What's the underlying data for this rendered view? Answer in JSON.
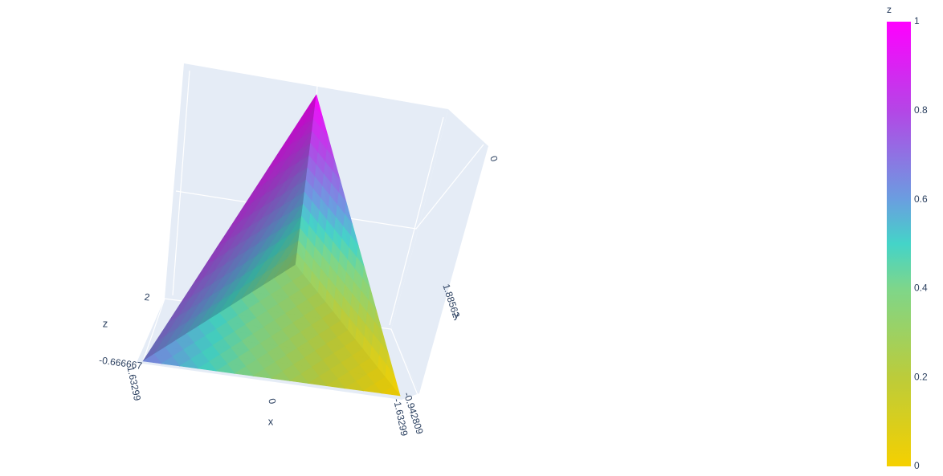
{
  "chart_data": {
    "type": "mesh3d",
    "x": [
      1.63299,
      -1.63299,
      0,
      0
    ],
    "y": [
      -0.942809,
      -0.942809,
      1.88562,
      0
    ],
    "z": [
      -0.666667,
      -0.666667,
      -0.666667,
      2
    ],
    "intensity": [
      0.66,
      0,
      0.33,
      1
    ],
    "faces": [
      [
        0,
        2,
        3
      ],
      [
        1,
        2,
        3
      ],
      [
        0,
        1,
        2
      ]
    ],
    "colorscale": [
      [
        0,
        "#f5d000"
      ],
      [
        0.2,
        "#bccc3a"
      ],
      [
        0.4,
        "#7ed68a"
      ],
      [
        0.5,
        "#44d4c8"
      ],
      [
        0.6,
        "#6a9ee0"
      ],
      [
        0.8,
        "#b446e6"
      ],
      [
        1,
        "#ff00ff"
      ]
    ],
    "xaxis_title": "x",
    "yaxis_title": "y",
    "zaxis_title": "z",
    "xticks": [
      -1.63299,
      0,
      1.63299
    ],
    "yticks": [
      -0.942809,
      0,
      1.88562
    ],
    "zticks": [
      -0.666667,
      2
    ],
    "colorbar_title": "z",
    "colorbar_lim": [
      0,
      1
    ],
    "colorbar_ticks": [
      0,
      0.2,
      0.4,
      0.6,
      0.8,
      1
    ]
  }
}
